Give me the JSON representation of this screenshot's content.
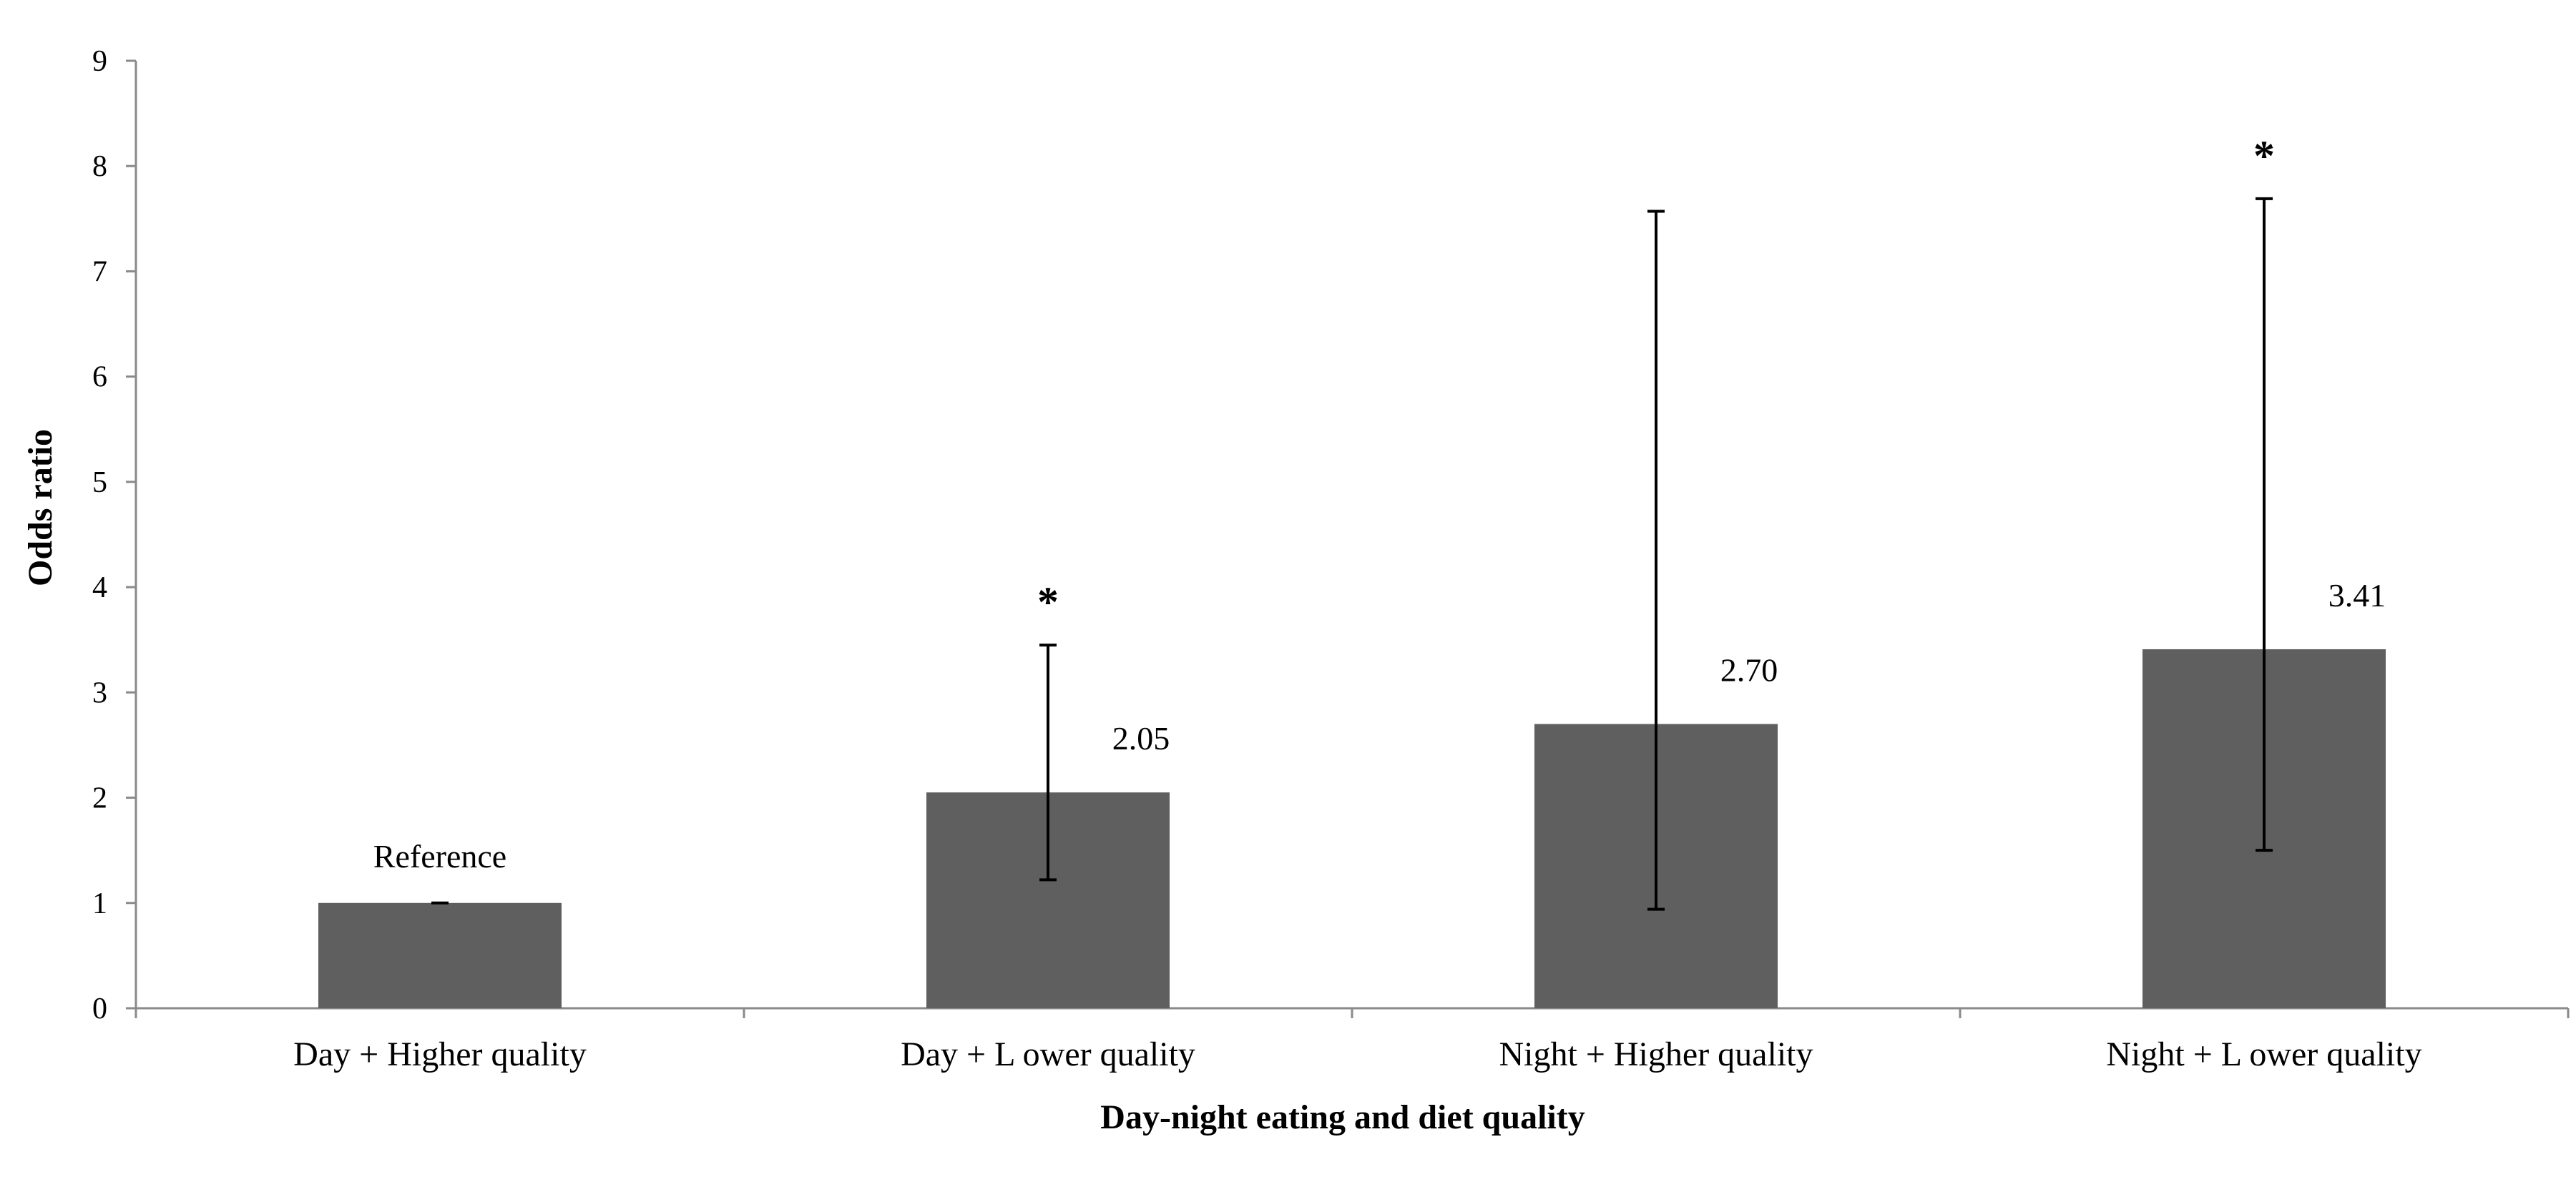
{
  "chart_data": {
    "type": "bar",
    "title": "",
    "xlabel": "Day-night eating and diet quality",
    "ylabel": "Odds ratio",
    "ylim": [
      0,
      9
    ],
    "yticks": [
      0,
      1,
      2,
      3,
      4,
      5,
      6,
      7,
      8,
      9
    ],
    "grid": false,
    "legend": "none",
    "categories": [
      "Day + Higher quality",
      "Day + L ower quality",
      "Night + Higher quality",
      "Night + L ower quality"
    ],
    "values": [
      1.0,
      2.05,
      2.7,
      3.41
    ],
    "ci_lower": [
      1.0,
      1.22,
      0.94,
      1.5
    ],
    "ci_upper": [
      1.0,
      3.45,
      7.57,
      7.69
    ],
    "data_labels": [
      "Reference",
      "2.05",
      "2.70",
      "3.41"
    ],
    "significance_markers": [
      "",
      "*",
      "",
      "*"
    ],
    "bar_color": "#5f5f5f"
  }
}
